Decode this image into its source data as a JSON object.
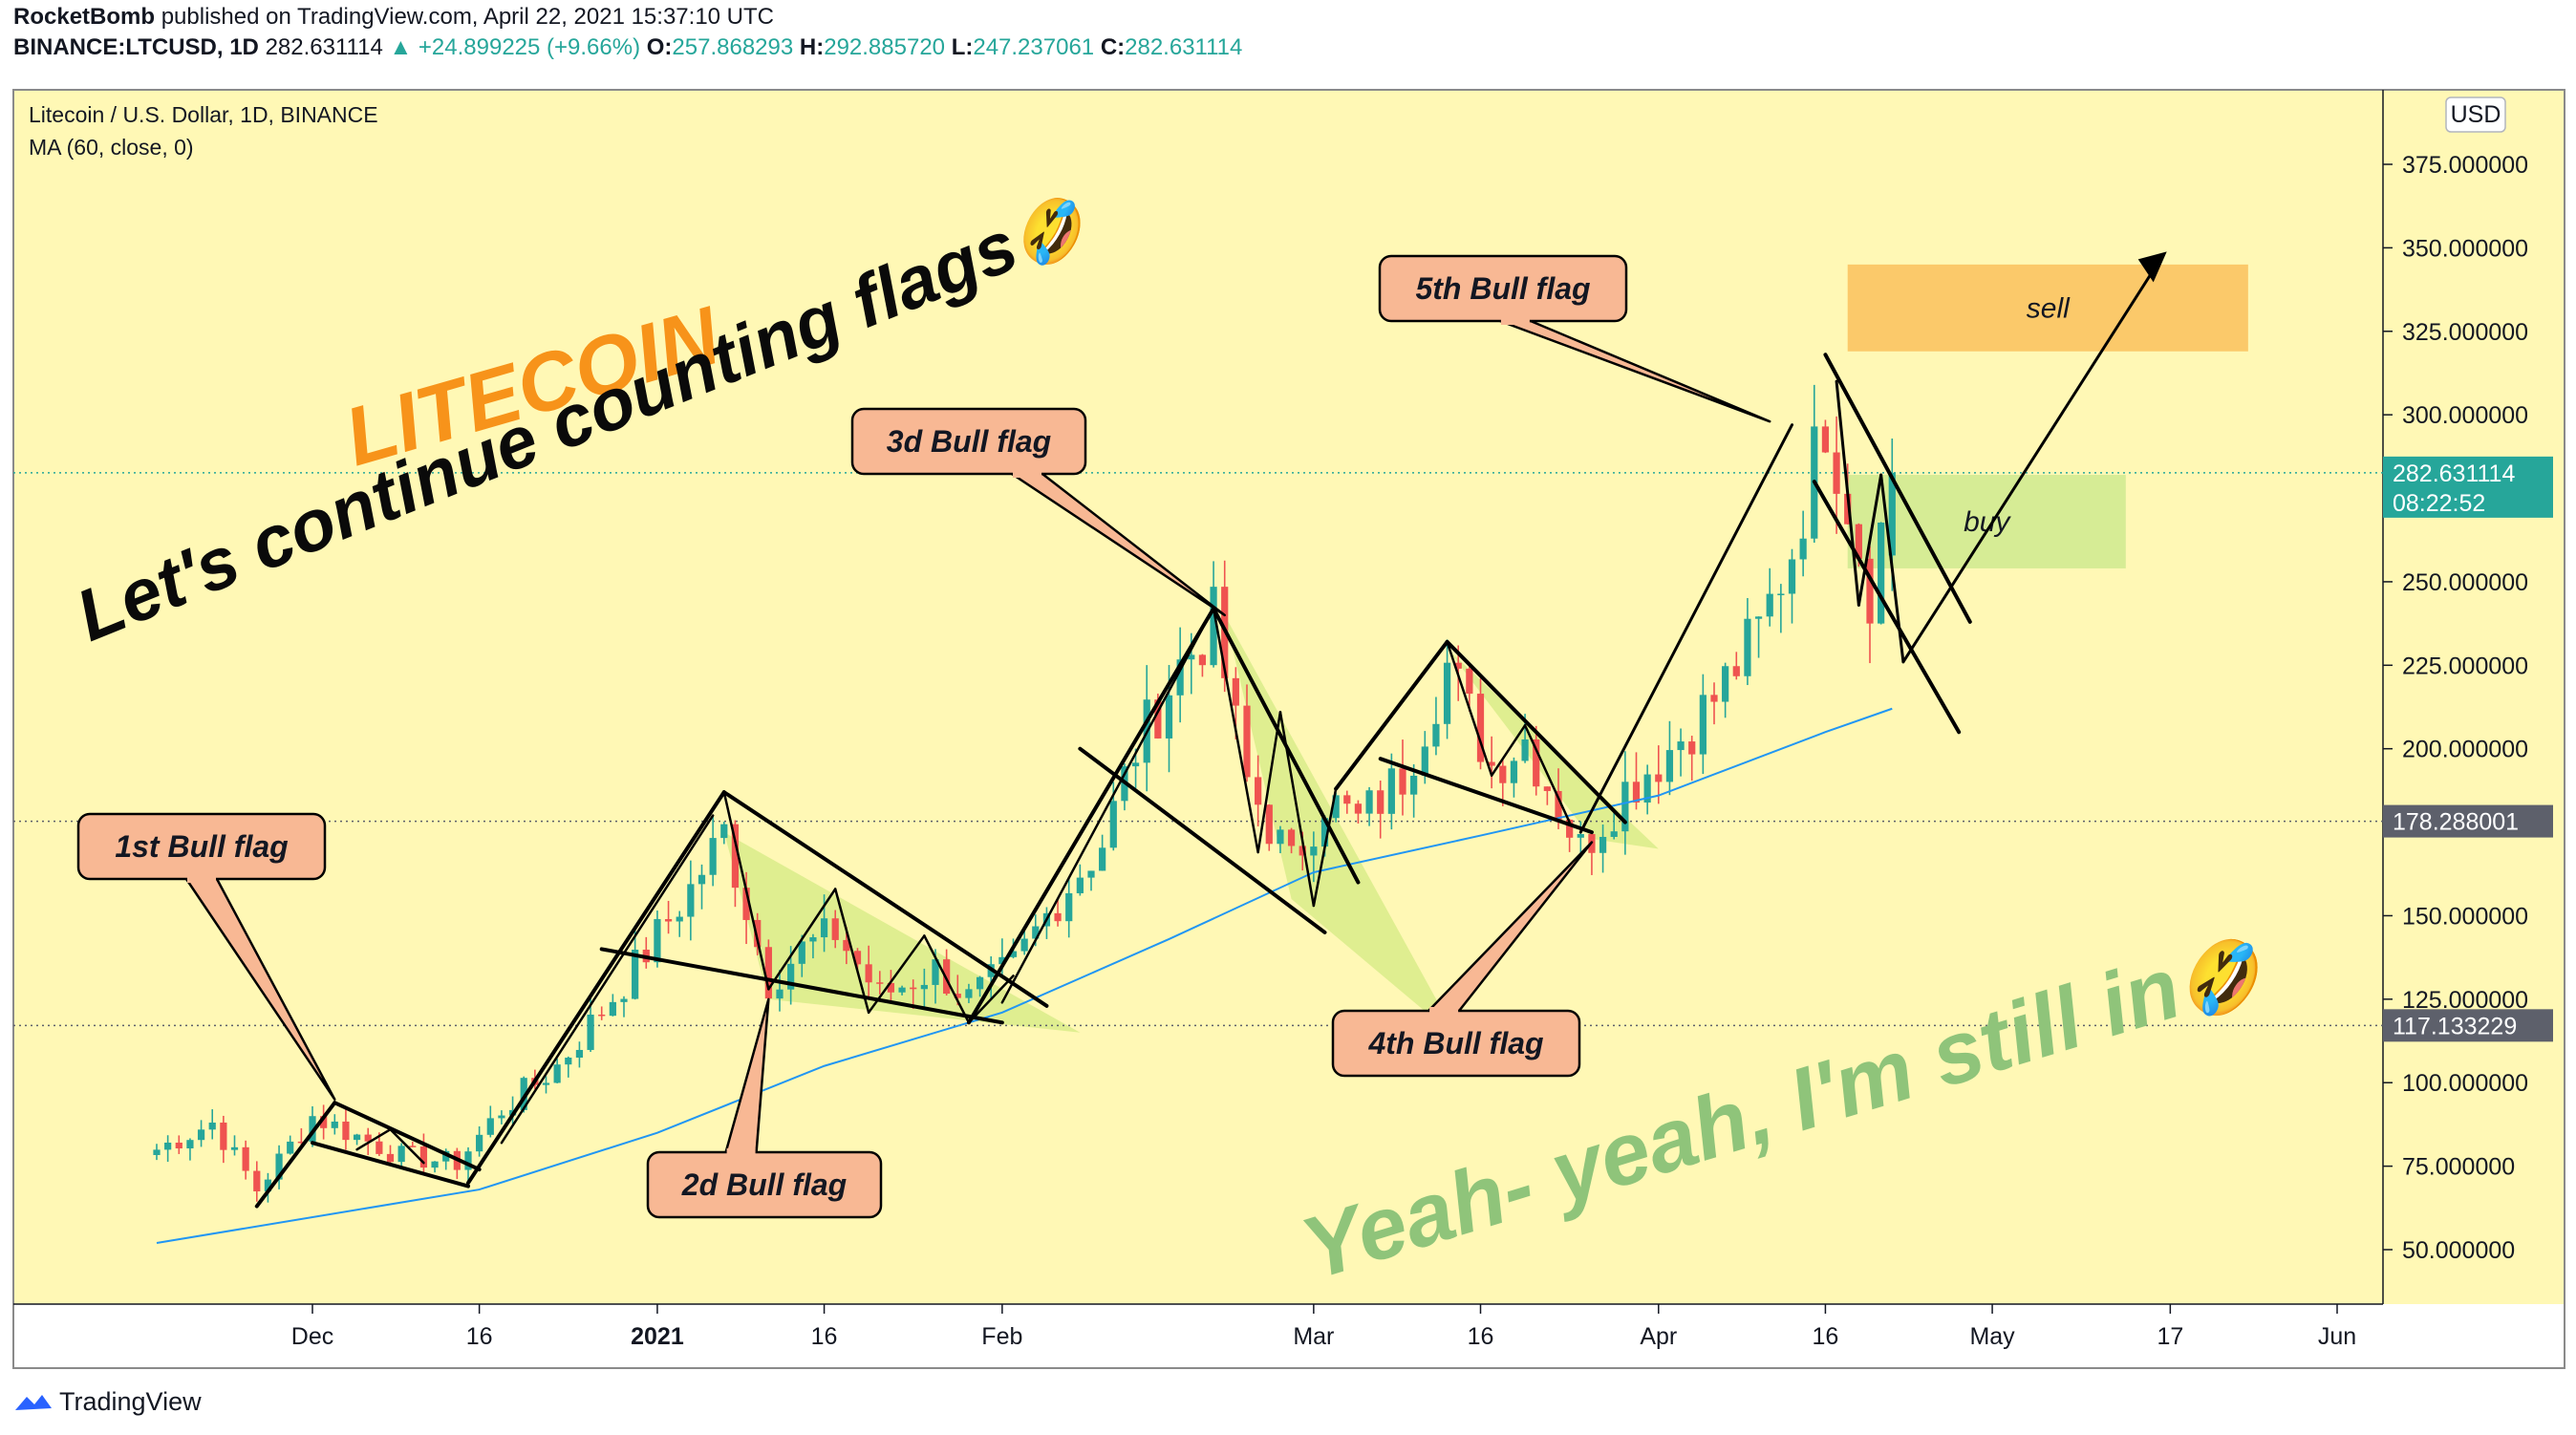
{
  "header": {
    "publisher": "RocketBomb",
    "published_text": "published on TradingView.com, April 22, 2021 15:37:10 UTC",
    "symbol": "BINANCE:LTCUSD, 1D",
    "last": "282.631114",
    "change": "▲ +24.899225 (+9.66%)",
    "o_label": "O:",
    "o_value": "257.868293",
    "h_label": "H:",
    "h_value": "292.885720",
    "l_label": "L:",
    "l_value": "247.237061",
    "c_label": "C:",
    "c_value": "282.631114"
  },
  "legend": {
    "title": "Litecoin / U.S. Dollar, 1D, BINANCE",
    "indicator": "MA (60, close, 0)"
  },
  "currency_button": "USD",
  "footer": {
    "brand": "TradingView",
    "logo_icon": "tradingview-logo-icon"
  },
  "colors": {
    "background": "#fff8b5",
    "up": "#26a69a",
    "down": "#ef5350",
    "ma": "#2196f3",
    "callout_fill": "#f8b894",
    "sell_zone": "#fbc96a",
    "buy_zone": "#d6ec95",
    "flag_fill": "#d9ec8a",
    "litecoin_text": "#f7931a",
    "watermark_text": "#8fc47a"
  },
  "chart_data": {
    "type": "candlestick",
    "title": "Litecoin / U.S. Dollar, 1D, BINANCE",
    "ylabel": "USD",
    "ylim": [
      30,
      395
    ],
    "y_ticks": [
      "375.000000",
      "350.000000",
      "325.000000",
      "300.000000",
      "250.000000",
      "225.000000",
      "200.000000",
      "150.000000",
      "125.000000",
      "100.000000",
      "75.000000",
      "50.000000"
    ],
    "x_tick_labels": [
      {
        "date": "2020-12-01",
        "label": "Dec"
      },
      {
        "date": "2020-12-16",
        "label": "16"
      },
      {
        "date": "2021-01-01",
        "label": "2021"
      },
      {
        "date": "2021-01-16",
        "label": "16"
      },
      {
        "date": "2021-02-01",
        "label": "Feb"
      },
      {
        "date": "2021-03-01",
        "label": "Mar"
      },
      {
        "date": "2021-03-16",
        "label": "16"
      },
      {
        "date": "2021-04-01",
        "label": "Apr"
      },
      {
        "date": "2021-04-16",
        "label": "16"
      },
      {
        "date": "2021-05-01",
        "label": "May"
      },
      {
        "date": "2021-05-17",
        "label": "17"
      },
      {
        "date": "2021-06-01",
        "label": "Jun"
      }
    ],
    "x_range": [
      "2020-11-17",
      "2021-06-01"
    ],
    "price_labels": [
      {
        "value": 282.631114,
        "text": "282.631114",
        "countdown": "08:22:52",
        "color": "#26a69a"
      },
      {
        "value": 178.288001,
        "text": "178.288001",
        "color": "#5d606b"
      },
      {
        "value": 117.133229,
        "text": "117.133229",
        "color": "#5d606b"
      }
    ],
    "ohlc_anchor_points": [
      {
        "date": "2020-11-17",
        "price": 80
      },
      {
        "date": "2020-11-22",
        "price": 88
      },
      {
        "date": "2020-11-26",
        "price": 68
      },
      {
        "date": "2020-12-01",
        "price": 90
      },
      {
        "date": "2020-12-09",
        "price": 78
      },
      {
        "date": "2020-12-14",
        "price": 76
      },
      {
        "date": "2020-12-18",
        "price": 92
      },
      {
        "date": "2020-12-23",
        "price": 105
      },
      {
        "date": "2020-12-29",
        "price": 130
      },
      {
        "date": "2021-01-04",
        "price": 158
      },
      {
        "date": "2021-01-07",
        "price": 175
      },
      {
        "date": "2021-01-11",
        "price": 130
      },
      {
        "date": "2021-01-14",
        "price": 140
      },
      {
        "date": "2021-01-17",
        "price": 145
      },
      {
        "date": "2021-01-21",
        "price": 126
      },
      {
        "date": "2021-01-26",
        "price": 134
      },
      {
        "date": "2021-01-29",
        "price": 125
      },
      {
        "date": "2021-02-02",
        "price": 135
      },
      {
        "date": "2021-02-06",
        "price": 155
      },
      {
        "date": "2021-02-10",
        "price": 172
      },
      {
        "date": "2021-02-13",
        "price": 200
      },
      {
        "date": "2021-02-17",
        "price": 225
      },
      {
        "date": "2021-02-20",
        "price": 238
      },
      {
        "date": "2021-02-23",
        "price": 190
      },
      {
        "date": "2021-02-27",
        "price": 165
      },
      {
        "date": "2021-03-02",
        "price": 185
      },
      {
        "date": "2021-03-05",
        "price": 178
      },
      {
        "date": "2021-03-09",
        "price": 192
      },
      {
        "date": "2021-03-13",
        "price": 225
      },
      {
        "date": "2021-03-17",
        "price": 195
      },
      {
        "date": "2021-03-20",
        "price": 203
      },
      {
        "date": "2021-03-25",
        "price": 170
      },
      {
        "date": "2021-03-29",
        "price": 188
      },
      {
        "date": "2021-04-02",
        "price": 200
      },
      {
        "date": "2021-04-06",
        "price": 215
      },
      {
        "date": "2021-04-10",
        "price": 235
      },
      {
        "date": "2021-04-13",
        "price": 260
      },
      {
        "date": "2021-04-16",
        "price": 300
      },
      {
        "date": "2021-04-18",
        "price": 275
      },
      {
        "date": "2021-04-20",
        "price": 248
      },
      {
        "date": "2021-04-22",
        "price": 282.63
      }
    ],
    "ma_points": [
      {
        "date": "2020-11-17",
        "price": 52
      },
      {
        "date": "2020-12-16",
        "price": 68
      },
      {
        "date": "2021-01-01",
        "price": 85
      },
      {
        "date": "2021-01-16",
        "price": 105
      },
      {
        "date": "2021-02-01",
        "price": 121
      },
      {
        "date": "2021-02-16",
        "price": 143
      },
      {
        "date": "2021-03-01",
        "price": 163
      },
      {
        "date": "2021-03-16",
        "price": 174
      },
      {
        "date": "2021-04-01",
        "price": 186
      },
      {
        "date": "2021-04-16",
        "price": 205
      },
      {
        "date": "2021-04-22",
        "price": 212
      }
    ],
    "annotations": {
      "title1": "LITECOIN",
      "title2": "Let's continue counting flags",
      "watermark": "Yeah- yeah, I'm still in",
      "emoji": "🤣",
      "callouts": [
        {
          "text": "1st Bull flag",
          "target_date": "2020-12-03",
          "target_price": 95
        },
        {
          "text": "2d Bull flag",
          "target_date": "2021-01-11",
          "target_price": 125
        },
        {
          "text": "3d Bull flag",
          "target_date": "2021-02-21",
          "target_price": 240
        },
        {
          "text": "4th Bull flag",
          "target_date": "2021-03-26",
          "target_price": 172
        },
        {
          "text": "5th Bull flag",
          "target_date": "2021-04-11",
          "target_price": 298
        }
      ],
      "zones": [
        {
          "label": "sell",
          "from": "2021-04-18",
          "to": "2021-05-24",
          "low": 319,
          "high": 345
        },
        {
          "label": "buy",
          "from": "2021-04-18",
          "to": "2021-05-13",
          "low": 254,
          "high": 282
        }
      ]
    }
  }
}
